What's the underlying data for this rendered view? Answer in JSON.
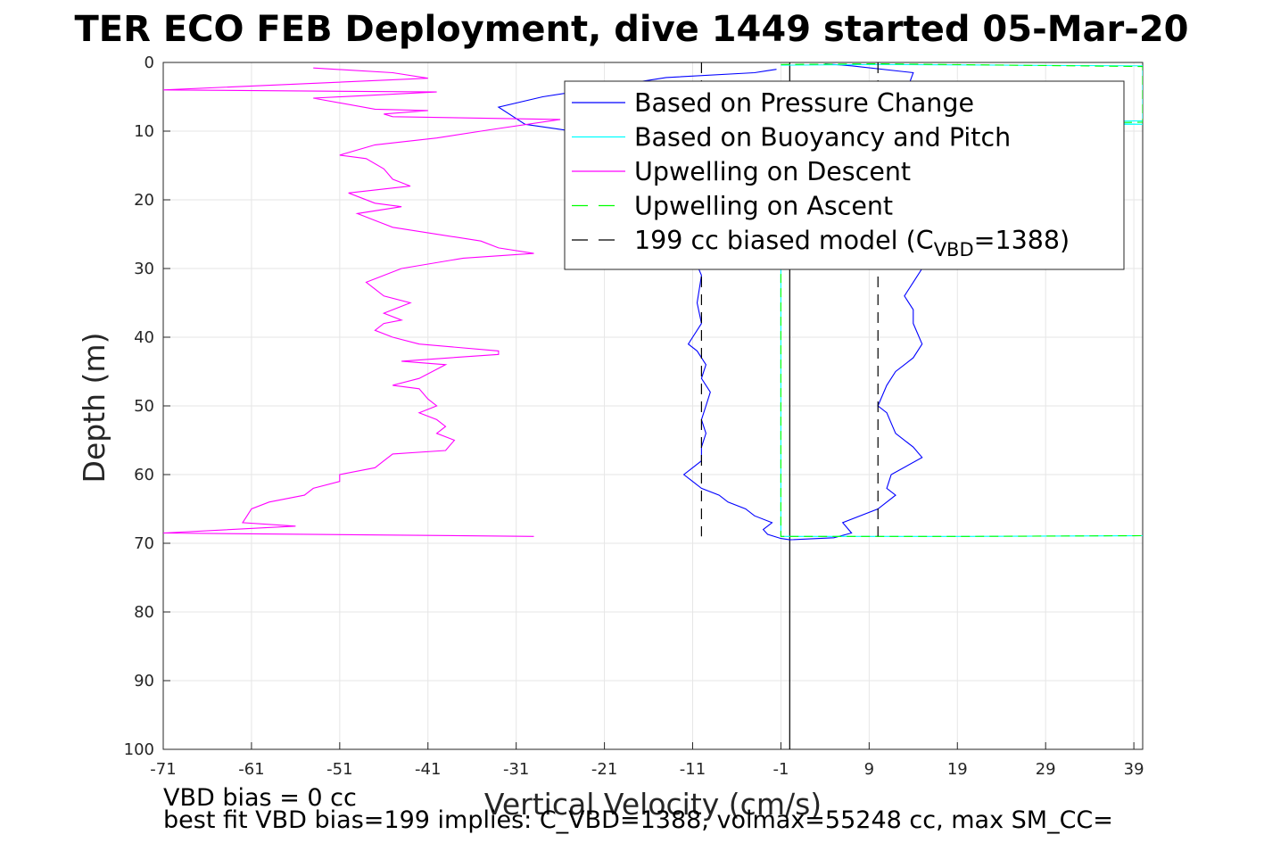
{
  "chart_data": {
    "type": "line",
    "title": "TER ECO FEB Deployment, dive 1449 started 05-Mar-20",
    "xlabel": "Vertical Velocity (cm/s)",
    "ylabel": "Depth (m)",
    "xlim": [
      -71,
      40
    ],
    "ylim": [
      0,
      100
    ],
    "y_reversed": true,
    "grid": true,
    "x_ticks": [
      "-71",
      "-61",
      "-51",
      "-41",
      "-31",
      "-21",
      "-11",
      "-1",
      "9",
      "19",
      "29",
      "39"
    ],
    "y_ticks": [
      "0",
      "10",
      "20",
      "30",
      "40",
      "50",
      "60",
      "70",
      "80",
      "90",
      "100"
    ],
    "legend_position": "top-right",
    "legend": [
      {
        "label": "Based on Pressure Change",
        "color": "#0000ff",
        "dash": "solid"
      },
      {
        "label": "Based on Buoyancy and Pitch",
        "color": "#00ffff",
        "dash": "solid"
      },
      {
        "label": "Upwelling on Descent",
        "color": "#ff00ff",
        "dash": "solid"
      },
      {
        "label": "Upwelling on Ascent",
        "color": "#00ff00",
        "dash": "dashed"
      },
      {
        "label_main": "199 cc biased model (C",
        "label_sub": "VBD",
        "label_end": "=1388)",
        "color": "#000000",
        "dash": "dashed"
      }
    ],
    "series": [
      {
        "name": "Based on Pressure Change",
        "color": "#0000ff",
        "points": [
          [
            -1.5,
            1.0
          ],
          [
            -2.5,
            1.2
          ],
          [
            -4,
            1.5
          ],
          [
            -14,
            2.2
          ],
          [
            -28,
            5.0
          ],
          [
            -33,
            6.5
          ],
          [
            -30,
            9.0
          ],
          [
            -22,
            10.5
          ],
          [
            -15,
            13
          ],
          [
            -13,
            18
          ],
          [
            -12,
            25
          ],
          [
            -11,
            28
          ],
          [
            -10,
            31
          ],
          [
            -10.5,
            35
          ],
          [
            -10,
            38
          ],
          [
            -11,
            40
          ],
          [
            -11.5,
            41
          ],
          [
            -10.5,
            42
          ],
          [
            -9.5,
            44
          ],
          [
            -10,
            46
          ],
          [
            -9,
            48
          ],
          [
            -9.5,
            50
          ],
          [
            -10,
            52
          ],
          [
            -9.5,
            54
          ],
          [
            -10,
            56
          ],
          [
            -10,
            58
          ],
          [
            -11,
            59
          ],
          [
            -12,
            60
          ],
          [
            -11,
            61
          ],
          [
            -10,
            62
          ],
          [
            -8,
            63
          ],
          [
            -7,
            64
          ],
          [
            -5,
            65
          ],
          [
            -4,
            66
          ],
          [
            -2,
            67
          ],
          [
            -3,
            68
          ],
          [
            -2.5,
            68.7
          ],
          [
            -1,
            69.3
          ],
          [
            0,
            69.5
          ],
          [
            5,
            69.2
          ],
          [
            7,
            68.5
          ],
          [
            6,
            67
          ],
          [
            10,
            65
          ],
          [
            12,
            63
          ],
          [
            11,
            62
          ],
          [
            11.5,
            60
          ],
          [
            15,
            57.5
          ],
          [
            14,
            56
          ],
          [
            12,
            54
          ],
          [
            11,
            51
          ],
          [
            10,
            50
          ],
          [
            11,
            47
          ],
          [
            12,
            45
          ],
          [
            14,
            43
          ],
          [
            15,
            41
          ],
          [
            14,
            38
          ],
          [
            14,
            36
          ],
          [
            13,
            34
          ],
          [
            14,
            32
          ],
          [
            15,
            30
          ],
          [
            16,
            25
          ],
          [
            15,
            20
          ],
          [
            14,
            15
          ],
          [
            14,
            10
          ],
          [
            13,
            5
          ],
          [
            14,
            1.5
          ],
          [
            7,
            0.5
          ],
          [
            4,
            0.2
          ]
        ]
      },
      {
        "name": "Based on Buoyancy and Pitch",
        "color": "#00ffff",
        "points": [
          [
            -1,
            0.4
          ],
          [
            10,
            0.3
          ],
          [
            25,
            0.4
          ],
          [
            40,
            0.5
          ],
          [
            40,
            8.5
          ],
          [
            30,
            8.7
          ],
          [
            40,
            9
          ],
          [
            -1,
            9.2
          ],
          [
            -1,
            69
          ],
          [
            20,
            69
          ],
          [
            40,
            68.9
          ]
        ]
      },
      {
        "name": "Upwelling on Descent",
        "color": "#ff00ff",
        "points": [
          [
            -54,
            0.8
          ],
          [
            -45,
            1.5
          ],
          [
            -41,
            2.3
          ],
          [
            -71,
            4.0
          ],
          [
            -40,
            4.3
          ],
          [
            -54,
            5.2
          ],
          [
            -47,
            6.8
          ],
          [
            -41,
            7.0
          ],
          [
            -46,
            7.5
          ],
          [
            -45,
            7.9
          ],
          [
            -26,
            8.3
          ],
          [
            -34,
            9.8
          ],
          [
            -40,
            11
          ],
          [
            -47,
            12
          ],
          [
            -51,
            13.5
          ],
          [
            -48,
            14
          ],
          [
            -46,
            15.5
          ],
          [
            -45,
            17
          ],
          [
            -44,
            17.5
          ],
          [
            -43,
            18
          ],
          [
            -50,
            19
          ],
          [
            -47,
            20.5
          ],
          [
            -44,
            21
          ],
          [
            -49,
            22
          ],
          [
            -47,
            23
          ],
          [
            -45,
            24
          ],
          [
            -35,
            26
          ],
          [
            -33,
            27
          ],
          [
            -29,
            27.8
          ],
          [
            -37,
            28.5
          ],
          [
            -44,
            30
          ],
          [
            -48,
            32
          ],
          [
            -47,
            33
          ],
          [
            -46,
            34
          ],
          [
            -43,
            35
          ],
          [
            -46,
            36.5
          ],
          [
            -44,
            37.5
          ],
          [
            -46,
            38
          ],
          [
            -47,
            39
          ],
          [
            -45,
            40
          ],
          [
            -42,
            41
          ],
          [
            -33,
            42
          ],
          [
            -33,
            42.5
          ],
          [
            -44,
            43.5
          ],
          [
            -39,
            44
          ],
          [
            -42,
            46
          ],
          [
            -45,
            47
          ],
          [
            -42,
            47.5
          ],
          [
            -41,
            49
          ],
          [
            -40,
            50
          ],
          [
            -42,
            51
          ],
          [
            -40,
            52
          ],
          [
            -39,
            53
          ],
          [
            -40,
            54
          ],
          [
            -38,
            55
          ],
          [
            -39,
            56.5
          ],
          [
            -45,
            57
          ],
          [
            -46,
            58
          ],
          [
            -47,
            59
          ],
          [
            -51,
            60
          ],
          [
            -51,
            61
          ],
          [
            -54,
            62
          ],
          [
            -55,
            63
          ],
          [
            -59,
            64
          ],
          [
            -61,
            65
          ],
          [
            -61.5,
            66
          ],
          [
            -62,
            67
          ],
          [
            -56,
            67.5
          ],
          [
            -71,
            68.5
          ],
          [
            -29,
            69
          ]
        ]
      },
      {
        "name": "Upwelling on Ascent",
        "color": "#00ff00",
        "dash": "10 6",
        "points": [
          [
            -1,
            0.3
          ],
          [
            10,
            0.2
          ],
          [
            40,
            0.6
          ],
          [
            40,
            8.7
          ],
          [
            20,
            9
          ],
          [
            -1,
            9.2
          ],
          [
            -1,
            69
          ],
          [
            20,
            69
          ],
          [
            40,
            68.9
          ]
        ]
      },
      {
        "name": "199 cc biased model",
        "color": "#000000",
        "dash": "12 8",
        "lines": [
          [
            [
              -10,
              0
            ],
            [
              -10,
              69
            ]
          ],
          [
            [
              10,
              0
            ],
            [
              10,
              69
            ]
          ]
        ]
      }
    ],
    "reference_line": {
      "x": 0,
      "color": "#000000"
    },
    "annotations": [
      "VBD bias = 0 cc",
      "best fit VBD bias=199 implies: C_VBD=1388, volmax=55248 cc, max SM_CC="
    ]
  }
}
